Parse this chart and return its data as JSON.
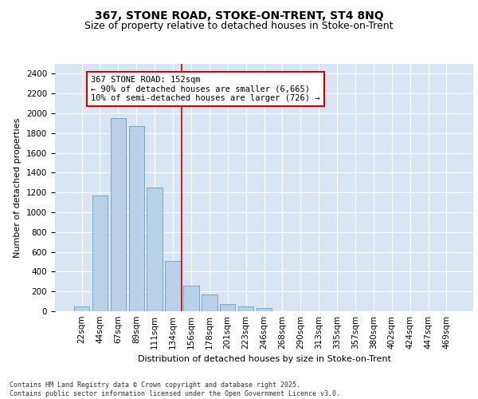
{
  "title_line1": "367, STONE ROAD, STOKE-ON-TRENT, ST4 8NQ",
  "title_line2": "Size of property relative to detached houses in Stoke-on-Trent",
  "xlabel": "Distribution of detached houses by size in Stoke-on-Trent",
  "ylabel": "Number of detached properties",
  "categories": [
    "22sqm",
    "44sqm",
    "67sqm",
    "89sqm",
    "111sqm",
    "134sqm",
    "156sqm",
    "178sqm",
    "201sqm",
    "223sqm",
    "246sqm",
    "268sqm",
    "290sqm",
    "313sqm",
    "335sqm",
    "357sqm",
    "380sqm",
    "402sqm",
    "424sqm",
    "447sqm",
    "469sqm"
  ],
  "values": [
    50,
    1170,
    1950,
    1870,
    1250,
    510,
    260,
    170,
    70,
    45,
    30,
    0,
    0,
    0,
    0,
    0,
    0,
    0,
    0,
    0,
    0
  ],
  "bar_color": "#b8d0e8",
  "bar_edge_color": "#6a9fc0",
  "vline_x": 5.5,
  "vline_color": "#cc0000",
  "annotation_text": "367 STONE ROAD: 152sqm\n← 90% of detached houses are smaller (6,665)\n10% of semi-detached houses are larger (726) →",
  "annotation_box_color": "#ffffff",
  "annotation_box_edge_color": "#cc0000",
  "ylim": [
    0,
    2500
  ],
  "background_color": "#d9e5f3",
  "footer_text": "Contains HM Land Registry data © Crown copyright and database right 2025.\nContains public sector information licensed under the Open Government Licence v3.0.",
  "title_fontsize": 10,
  "subtitle_fontsize": 9,
  "axis_label_fontsize": 8,
  "tick_fontsize": 7.5,
  "annotation_fontsize": 7.5,
  "footer_fontsize": 6
}
